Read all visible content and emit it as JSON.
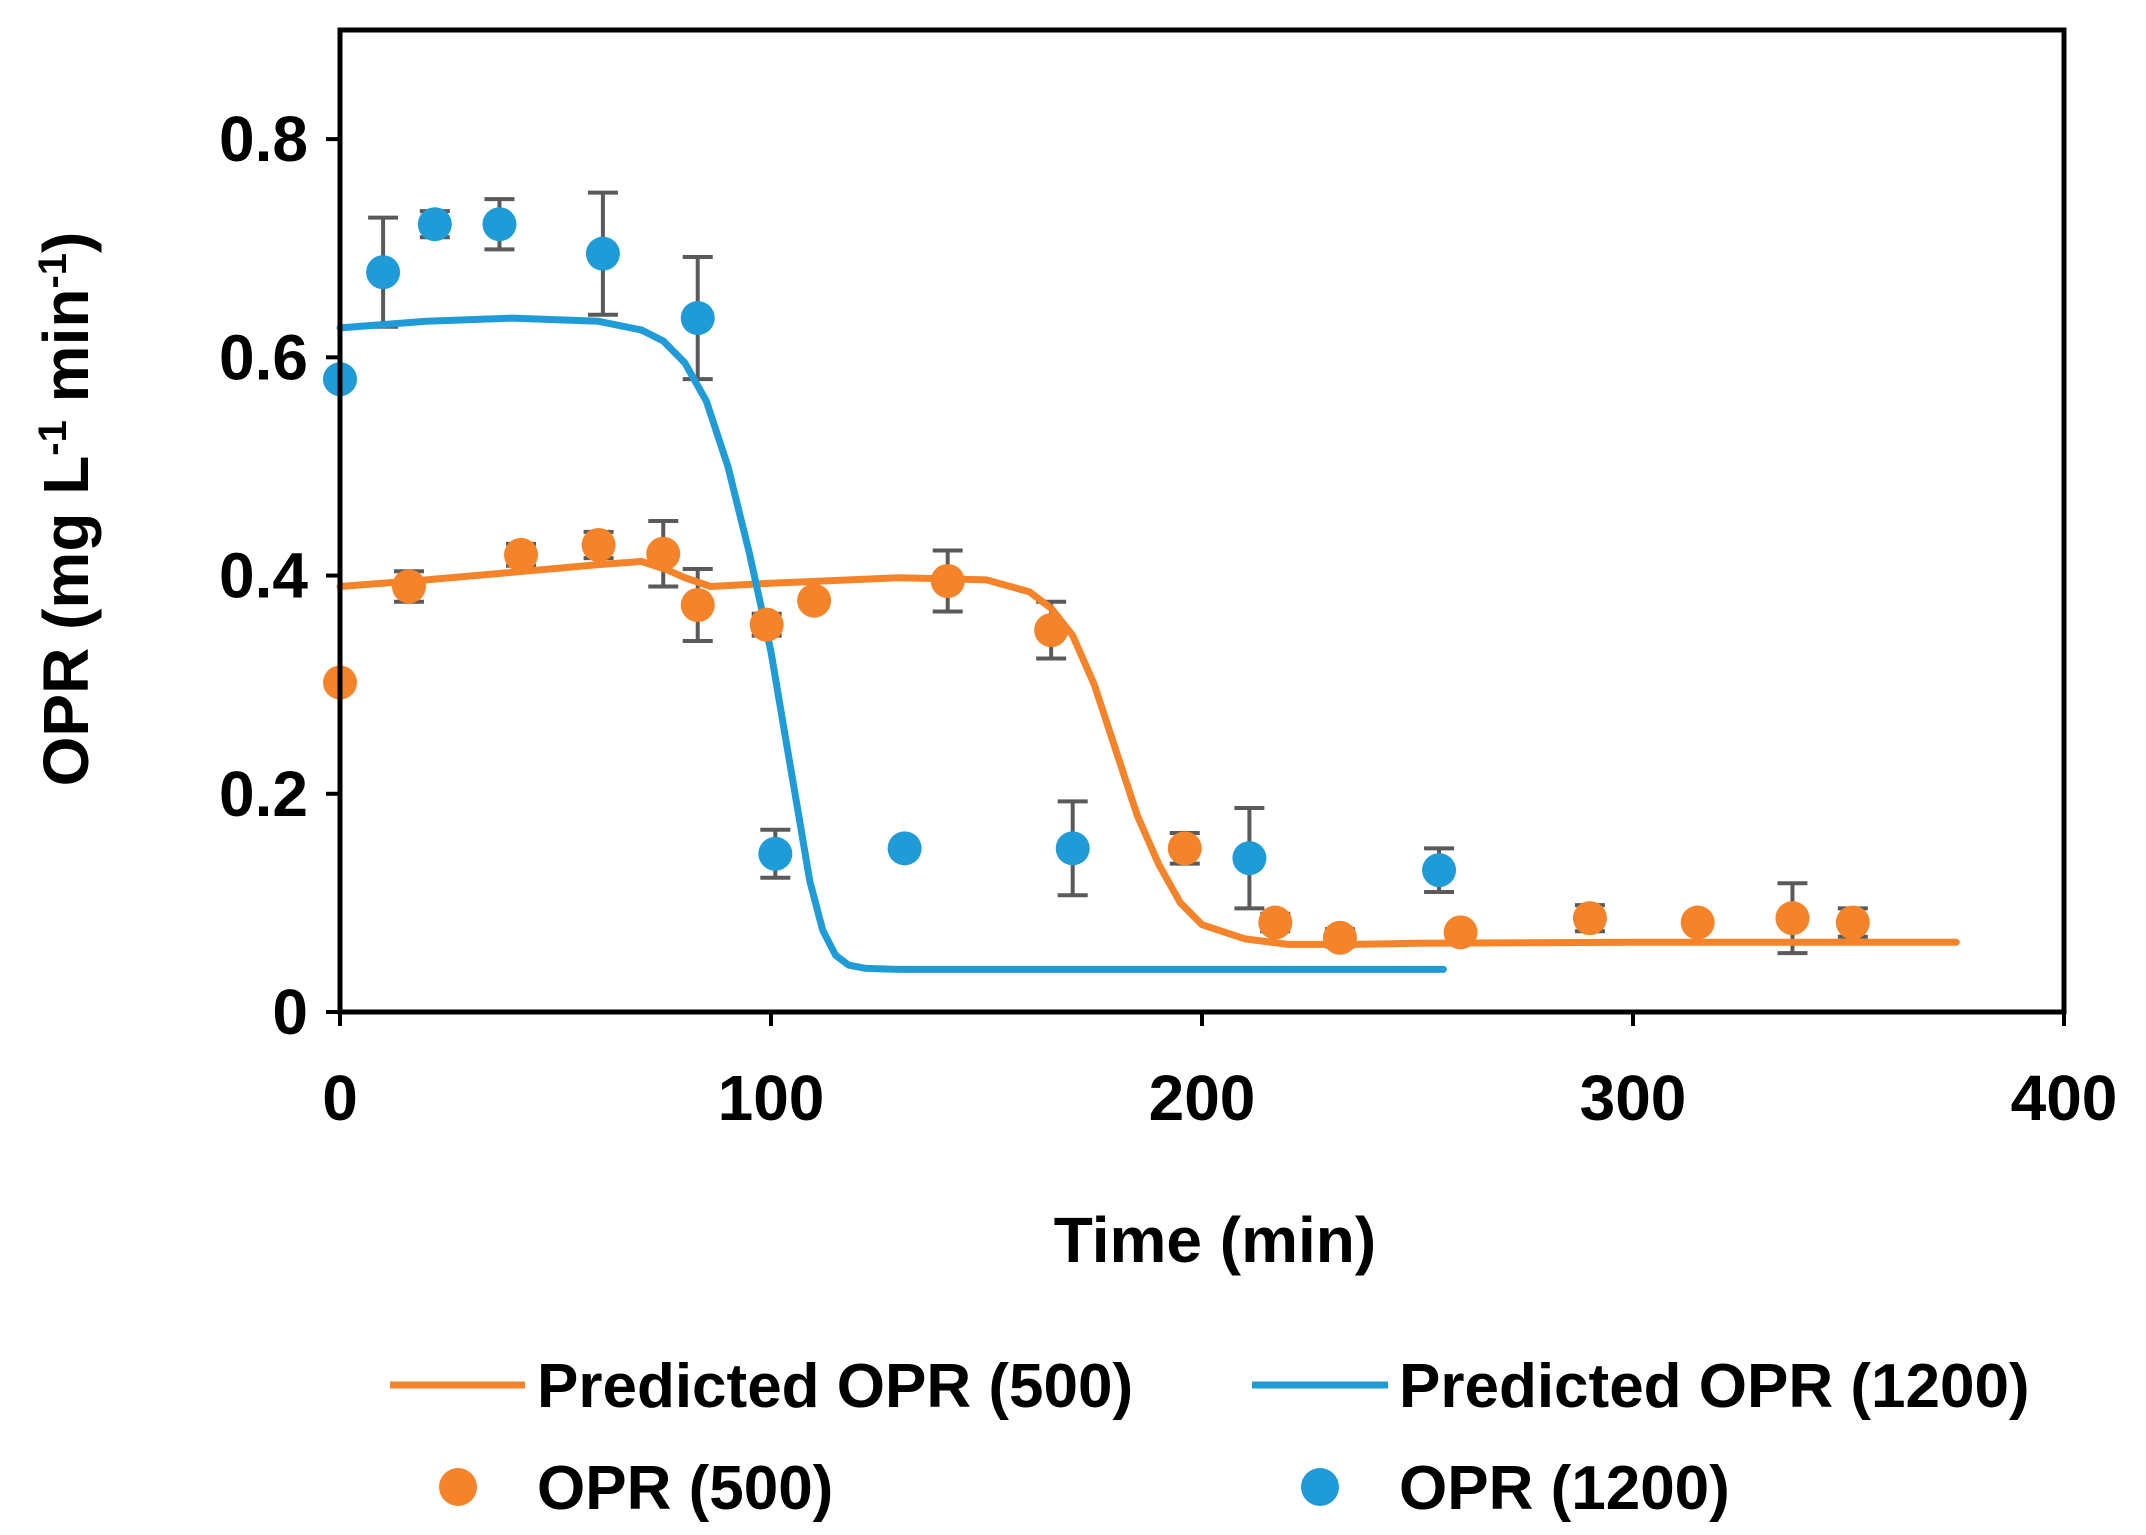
{
  "chart_data": {
    "type": "scatter",
    "title": "",
    "xlabel": "Time (min)",
    "ylabel_parts": [
      "OPR (mg L",
      "-1",
      " min",
      "-1",
      ")"
    ],
    "xlim": [
      0,
      400
    ],
    "ylim": [
      0,
      0.9
    ],
    "xticks": [
      0,
      100,
      200,
      300,
      400
    ],
    "xtick_labels": [
      "0",
      "100",
      "200",
      "300",
      "400"
    ],
    "yticks": [
      0,
      0.2,
      0.4,
      0.6,
      0.8
    ],
    "ytick_labels": [
      "0",
      "0.2",
      "0.4",
      "0.6",
      "0.8"
    ],
    "grid": false,
    "legend_position": "bottom",
    "colors": {
      "orange": "#f5832a",
      "blue": "#1f9bd7",
      "error": "#5a5a5a",
      "axis": "#000000"
    },
    "series": [
      {
        "name": "Predicted OPR (500)",
        "kind": "line",
        "color": "#f5832a",
        "x": [
          0,
          20,
          40,
          60,
          70,
          76,
          80,
          86,
          100,
          130,
          150,
          160,
          165,
          170,
          175,
          180,
          185,
          190,
          195,
          200,
          210,
          220,
          235,
          250,
          300,
          350,
          375
        ],
        "y": [
          0.39,
          0.396,
          0.403,
          0.41,
          0.413,
          0.405,
          0.398,
          0.39,
          0.393,
          0.398,
          0.396,
          0.385,
          0.37,
          0.345,
          0.3,
          0.24,
          0.18,
          0.135,
          0.1,
          0.08,
          0.067,
          0.062,
          0.062,
          0.063,
          0.064,
          0.064,
          0.064
        ]
      },
      {
        "name": "Predicted OPR (1200)",
        "kind": "line",
        "color": "#1f9bd7",
        "x": [
          0,
          20,
          40,
          60,
          70,
          75,
          80,
          85,
          90,
          95,
          100,
          103,
          106,
          109,
          112,
          115,
          118,
          122,
          130,
          150,
          200,
          256
        ],
        "y": [
          0.627,
          0.633,
          0.636,
          0.633,
          0.625,
          0.615,
          0.595,
          0.56,
          0.5,
          0.42,
          0.33,
          0.26,
          0.19,
          0.12,
          0.075,
          0.052,
          0.043,
          0.04,
          0.039,
          0.039,
          0.039,
          0.039
        ]
      },
      {
        "name": "OPR (500)",
        "kind": "scatter",
        "color": "#f5832a",
        "x": [
          0,
          16,
          42,
          60,
          75,
          83,
          99,
          110,
          141,
          165,
          196,
          217,
          232,
          260,
          290,
          315,
          337,
          351
        ],
        "y": [
          0.302,
          0.39,
          0.419,
          0.428,
          0.42,
          0.373,
          0.355,
          0.377,
          0.395,
          0.35,
          0.15,
          0.082,
          0.068,
          0.073,
          0.086,
          0.082,
          0.086,
          0.082
        ],
        "err": [
          0,
          0.014,
          0.01,
          0.012,
          0.03,
          0.033,
          0.01,
          0,
          0.028,
          0.026,
          0.014,
          0.008,
          0.008,
          0,
          0.012,
          0,
          0.032,
          0.013
        ]
      },
      {
        "name": "OPR (1200)",
        "kind": "scatter",
        "color": "#1f9bd7",
        "x": [
          0,
          10,
          22,
          37,
          61,
          83,
          101,
          131,
          170,
          211,
          255
        ],
        "y": [
          0.58,
          0.678,
          0.722,
          0.722,
          0.695,
          0.636,
          0.145,
          0.15,
          0.15,
          0.141,
          0.13
        ],
        "err": [
          0,
          0.05,
          0.012,
          0.023,
          0.056,
          0.056,
          0.022,
          0,
          0.043,
          0.046,
          0.02
        ]
      }
    ]
  }
}
